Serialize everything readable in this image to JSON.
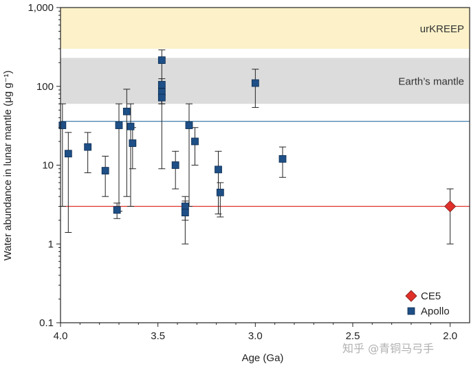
{
  "watermark": "知乎 @青铜马弓手",
  "chart_data": {
    "type": "scatter",
    "xlabel": "Age (Ga)",
    "ylabel": "Water abundance in lunar mantle (μg g⁻¹)",
    "xlim": [
      4.0,
      1.9
    ],
    "ylim": [
      0.1,
      1000
    ],
    "yscale": "log",
    "x_ticks": [
      {
        "value": 4.0,
        "label": "4.0"
      },
      {
        "value": 3.5,
        "label": "3.5"
      },
      {
        "value": 3.0,
        "label": "3.0"
      },
      {
        "value": 2.5,
        "label": "2.5"
      },
      {
        "value": 2.0,
        "label": "2.0"
      }
    ],
    "y_ticks": [
      {
        "value": 0.1,
        "label": "0.1"
      },
      {
        "value": 1,
        "label": "1"
      },
      {
        "value": 10,
        "label": "10"
      },
      {
        "value": 100,
        "label": "100"
      },
      {
        "value": 1000,
        "label": "1,000"
      }
    ],
    "bands": [
      {
        "label": "urKREEP",
        "ymin": 300,
        "ymax": 1000,
        "color": "#fcf1c8"
      },
      {
        "label": "Earth’s mantle",
        "ymin": 60,
        "ymax": 230,
        "color": "#dcdcdc"
      }
    ],
    "reference_lines": [
      {
        "y": 36,
        "color": "#2f6f9f"
      },
      {
        "y": 3,
        "color": "#e0302a"
      }
    ],
    "series": [
      {
        "name": "CE5",
        "marker": "diamond",
        "color": "#e0302a",
        "points": [
          {
            "x": 2.0,
            "y": 3,
            "ylow": 1,
            "yhigh": 5
          }
        ]
      },
      {
        "name": "Apollo",
        "marker": "square",
        "color": "#1e4f86",
        "points": [
          {
            "x": 3.99,
            "y": 32,
            "ylow": 3,
            "yhigh": 60
          },
          {
            "x": 3.96,
            "y": 14,
            "ylow": 1.4,
            "yhigh": 26
          },
          {
            "x": 3.86,
            "y": 17,
            "ylow": 8,
            "yhigh": 26
          },
          {
            "x": 3.77,
            "y": 8.5,
            "ylow": 4,
            "yhigh": 13
          },
          {
            "x": 3.71,
            "y": 2.7,
            "ylow": 2.1,
            "yhigh": 3.3
          },
          {
            "x": 3.7,
            "y": 32,
            "ylow": 2.6,
            "yhigh": 60
          },
          {
            "x": 3.66,
            "y": 48,
            "ylow": 4,
            "yhigh": 92
          },
          {
            "x": 3.64,
            "y": 31,
            "ylow": 3,
            "yhigh": 60
          },
          {
            "x": 3.63,
            "y": 19,
            "ylow": 9,
            "yhigh": 30
          },
          {
            "x": 3.48,
            "y": 215,
            "ylow": 110,
            "yhigh": 290
          },
          {
            "x": 3.48,
            "y": 105,
            "ylow": 9,
            "yhigh": 125
          },
          {
            "x": 3.48,
            "y": 85,
            "ylow": 60,
            "yhigh": 110
          },
          {
            "x": 3.48,
            "y": 72,
            "ylow": 60,
            "yhigh": 90
          },
          {
            "x": 3.41,
            "y": 10,
            "ylow": 5,
            "yhigh": 15
          },
          {
            "x": 3.36,
            "y": 3,
            "ylow": 1,
            "yhigh": 4
          },
          {
            "x": 3.36,
            "y": 2.5,
            "ylow": 2,
            "yhigh": 3.5
          },
          {
            "x": 3.34,
            "y": 32,
            "ylow": 3,
            "yhigh": 60
          },
          {
            "x": 3.31,
            "y": 20,
            "ylow": 10,
            "yhigh": 30
          },
          {
            "x": 3.19,
            "y": 8.8,
            "ylow": 2.4,
            "yhigh": 15
          },
          {
            "x": 3.18,
            "y": 4.5,
            "ylow": 2.2,
            "yhigh": 6
          },
          {
            "x": 3.0,
            "y": 110,
            "ylow": 54,
            "yhigh": 165
          },
          {
            "x": 2.86,
            "y": 12,
            "ylow": 7,
            "yhigh": 17
          }
        ]
      }
    ],
    "legend": {
      "position": "bottom-right",
      "items": [
        {
          "label": "CE5",
          "marker": "diamond",
          "color": "#e0302a"
        },
        {
          "label": "Apollo",
          "marker": "square",
          "color": "#1e4f86"
        }
      ]
    }
  }
}
